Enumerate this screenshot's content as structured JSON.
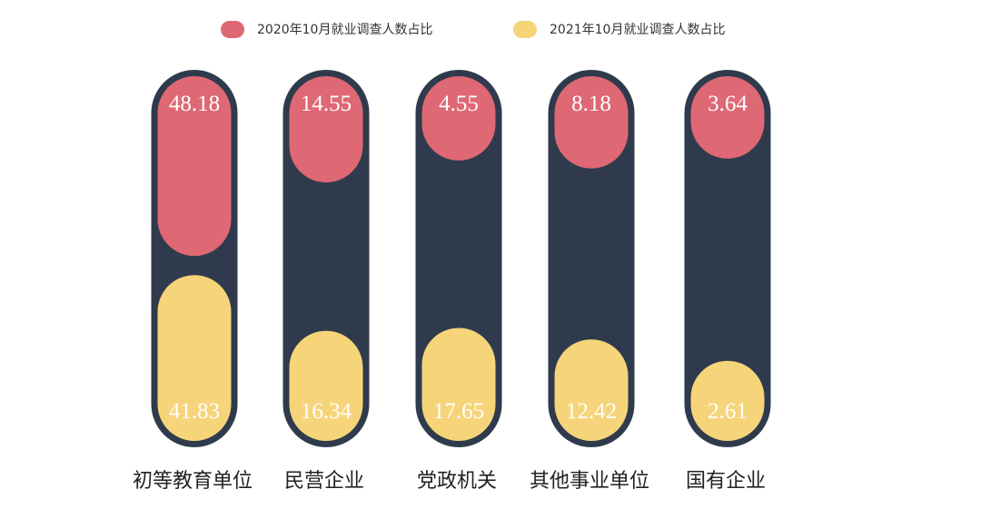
{
  "chart_data": {
    "type": "bar",
    "title": "",
    "categories": [
      "初等教育单位",
      "民营企业",
      "党政机关",
      "其他事业单位",
      "国有企业"
    ],
    "series": [
      {
        "name": "2020年10月就业调查人数占比",
        "values": [
          48.18,
          14.55,
          4.55,
          8.18,
          3.64
        ],
        "color": "#DE6873"
      },
      {
        "name": "2021年10月就业调查人数占比",
        "values": [
          41.83,
          16.34,
          17.65,
          12.42,
          2.61
        ],
        "color": "#F6D47A"
      }
    ],
    "track_color": "#2F3B4C",
    "legend": "top",
    "xlabel": "",
    "ylabel": ""
  }
}
